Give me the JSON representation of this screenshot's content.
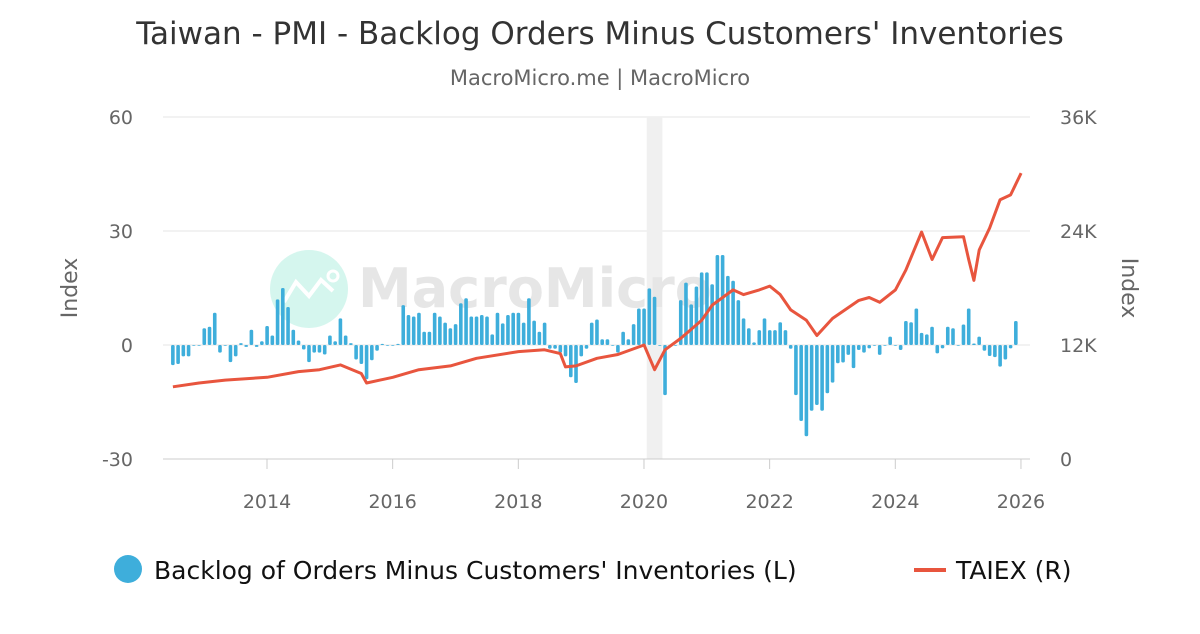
{
  "chart_data": {
    "type": "bar+line",
    "title": "Taiwan - PMI - Backlog Orders Minus Customers' Inventories",
    "subtitle": "MacroMicro.me | MacroMicro",
    "watermark": "MacroMicro",
    "ylabel_left": "Index",
    "ylabel_right": "Index",
    "ylim_left": [
      -30,
      60
    ],
    "ylim_right": [
      0,
      36000
    ],
    "yticks_left": [
      "60",
      "30",
      "0",
      "-30"
    ],
    "yticks_right": [
      "36K",
      "24K",
      "12K",
      "0"
    ],
    "xticks": [
      "2014",
      "2016",
      "2018",
      "2020",
      "2022",
      "2024",
      "2026"
    ],
    "grid": true,
    "legend_position": "bottom",
    "shaded_period": [
      "2020-02",
      "2020-04"
    ],
    "colors": {
      "bar": "#3eaedb",
      "line": "#e8553e",
      "shade": "#f0f0f0"
    },
    "series": [
      {
        "name": "Backlog of Orders Minus Customers' Inventories (L)",
        "type": "bar",
        "axis": "left",
        "points": [
          [
            "2012-07",
            -5.3
          ],
          [
            "2012-08",
            -5
          ],
          [
            "2012-09",
            -3
          ],
          [
            "2012-10",
            -3
          ],
          [
            "2012-11",
            0
          ],
          [
            "2012-12",
            0
          ],
          [
            "2013-01",
            4.4
          ],
          [
            "2013-02",
            4.8
          ],
          [
            "2013-03",
            8.5
          ],
          [
            "2013-04",
            -2
          ],
          [
            "2013-05",
            0
          ],
          [
            "2013-06",
            -4.5
          ],
          [
            "2013-07",
            -3
          ],
          [
            "2013-08",
            0.5
          ],
          [
            "2013-09",
            -0.5
          ],
          [
            "2013-10",
            4
          ],
          [
            "2013-11",
            -0.5
          ],
          [
            "2013-12",
            1
          ],
          [
            "2014-01",
            5
          ],
          [
            "2014-02",
            2.5
          ],
          [
            "2014-03",
            12
          ],
          [
            "2014-04",
            15
          ],
          [
            "2014-05",
            10
          ],
          [
            "2014-06",
            4
          ],
          [
            "2014-07",
            1.2
          ],
          [
            "2014-08",
            -1.2
          ],
          [
            "2014-09",
            -4.5
          ],
          [
            "2014-10",
            -2
          ],
          [
            "2014-11",
            -2
          ],
          [
            "2014-12",
            -2.5
          ],
          [
            "2015-01",
            2.5
          ],
          [
            "2015-02",
            1
          ],
          [
            "2015-03",
            7
          ],
          [
            "2015-04",
            2.5
          ],
          [
            "2015-05",
            0.5
          ],
          [
            "2015-06",
            -3.8
          ],
          [
            "2015-07",
            -5
          ],
          [
            "2015-08",
            -9
          ],
          [
            "2015-09",
            -4
          ],
          [
            "2015-10",
            -1.5
          ],
          [
            "2015-11",
            0.3
          ],
          [
            "2015-12",
            0
          ],
          [
            "2016-01",
            0
          ],
          [
            "2016-02",
            0.3
          ],
          [
            "2016-03",
            10.5
          ],
          [
            "2016-04",
            7.9
          ],
          [
            "2016-05",
            7.5
          ],
          [
            "2016-06",
            8.5
          ],
          [
            "2016-07",
            3.5
          ],
          [
            "2016-08",
            3.5
          ],
          [
            "2016-09",
            8.5
          ],
          [
            "2016-10",
            7.5
          ],
          [
            "2016-11",
            5.9
          ],
          [
            "2016-12",
            4.4
          ],
          [
            "2017-01",
            5.5
          ],
          [
            "2017-02",
            11
          ],
          [
            "2017-03",
            12.3
          ],
          [
            "2017-04",
            7.5
          ],
          [
            "2017-05",
            7.5
          ],
          [
            "2017-06",
            7.9
          ],
          [
            "2017-07",
            7.5
          ],
          [
            "2017-08",
            2.8
          ],
          [
            "2017-09",
            8.5
          ],
          [
            "2017-10",
            5.7
          ],
          [
            "2017-11",
            7.9
          ],
          [
            "2017-12",
            8.5
          ],
          [
            "2018-01",
            8.5
          ],
          [
            "2018-02",
            5.9
          ],
          [
            "2018-03",
            12.3
          ],
          [
            "2018-04",
            6.4
          ],
          [
            "2018-05",
            3.5
          ],
          [
            "2018-06",
            5.9
          ],
          [
            "2018-07",
            -1
          ],
          [
            "2018-08",
            -1
          ],
          [
            "2018-09",
            -2
          ],
          [
            "2018-10",
            -3
          ],
          [
            "2018-11",
            -8.5
          ],
          [
            "2018-12",
            -10
          ],
          [
            "2019-01",
            -3
          ],
          [
            "2019-02",
            -1
          ],
          [
            "2019-03",
            5.9
          ],
          [
            "2019-04",
            6.7
          ],
          [
            "2019-05",
            1.5
          ],
          [
            "2019-06",
            1.5
          ],
          [
            "2019-07",
            0
          ],
          [
            "2019-08",
            -2
          ],
          [
            "2019-09",
            3.5
          ],
          [
            "2019-10",
            1.5
          ],
          [
            "2019-11",
            5.5
          ],
          [
            "2019-12",
            9.6
          ],
          [
            "2020-01",
            9.6
          ],
          [
            "2020-02",
            14.9
          ],
          [
            "2020-03",
            12.7
          ],
          [
            "2020-04",
            0
          ],
          [
            "2020-05",
            -13.2
          ],
          [
            "2020-06",
            0
          ],
          [
            "2020-07",
            0
          ],
          [
            "2020-08",
            11.8
          ],
          [
            "2020-09",
            16.4
          ],
          [
            "2020-10",
            10.7
          ],
          [
            "2020-11",
            15.4
          ],
          [
            "2020-12",
            19.1
          ],
          [
            "2021-01",
            19.1
          ],
          [
            "2021-02",
            16
          ],
          [
            "2021-03",
            23.7
          ],
          [
            "2021-04",
            23.7
          ],
          [
            "2021-05",
            18.2
          ],
          [
            "2021-06",
            16.9
          ],
          [
            "2021-07",
            11.8
          ],
          [
            "2021-08",
            7
          ],
          [
            "2021-09",
            4.4
          ],
          [
            "2021-10",
            0.7
          ],
          [
            "2021-11",
            3.9
          ],
          [
            "2021-12",
            7
          ],
          [
            "2022-01",
            3.9
          ],
          [
            "2022-02",
            3.9
          ],
          [
            "2022-03",
            6
          ],
          [
            "2022-04",
            3.9
          ],
          [
            "2022-05",
            -1
          ],
          [
            "2022-06",
            -13.2
          ],
          [
            "2022-07",
            -20
          ],
          [
            "2022-08",
            -24
          ],
          [
            "2022-09",
            -17.3
          ],
          [
            "2022-10",
            -15.8
          ],
          [
            "2022-11",
            -17.3
          ],
          [
            "2022-12",
            -12.7
          ],
          [
            "2023-01",
            -9.9
          ],
          [
            "2023-02",
            -4.8
          ],
          [
            "2023-03",
            -4.6
          ],
          [
            "2023-04",
            -2.6
          ],
          [
            "2023-05",
            -6.1
          ],
          [
            "2023-06",
            -1.3
          ],
          [
            "2023-07",
            -2
          ],
          [
            "2023-08",
            -0.9
          ],
          [
            "2023-09",
            0
          ],
          [
            "2023-10",
            -2.6
          ],
          [
            "2023-11",
            0
          ],
          [
            "2023-12",
            2.2
          ],
          [
            "2024-01",
            0
          ],
          [
            "2024-02",
            -1.3
          ],
          [
            "2024-03",
            6.3
          ],
          [
            "2024-04",
            6
          ],
          [
            "2024-05",
            9.6
          ],
          [
            "2024-06",
            3.2
          ],
          [
            "2024-07",
            2.8
          ],
          [
            "2024-08",
            4.8
          ],
          [
            "2024-09",
            -2.2
          ],
          [
            "2024-10",
            -0.9
          ],
          [
            "2024-11",
            4.8
          ],
          [
            "2024-12",
            4.4
          ],
          [
            "2025-01",
            0
          ],
          [
            "2025-02",
            5.4
          ],
          [
            "2025-03",
            9.6
          ],
          [
            "2025-04",
            0.4
          ],
          [
            "2025-05",
            2.2
          ],
          [
            "2025-06",
            -1.5
          ],
          [
            "2025-07",
            -2.9
          ],
          [
            "2025-08",
            -3.2
          ],
          [
            "2025-09",
            -5.7
          ],
          [
            "2025-10",
            -3.8
          ],
          [
            "2025-11",
            -0.9
          ],
          [
            "2025-12",
            6.3
          ]
        ]
      },
      {
        "name": "TAIEX (R)",
        "type": "line",
        "axis": "right",
        "points": [
          [
            "2012-07",
            7600
          ],
          [
            "2012-12",
            8000
          ],
          [
            "2013-05",
            8300
          ],
          [
            "2014-01",
            8600
          ],
          [
            "2014-07",
            9200
          ],
          [
            "2014-11",
            9400
          ],
          [
            "2015-03",
            9900
          ],
          [
            "2015-07",
            9000
          ],
          [
            "2015-08",
            8000
          ],
          [
            "2016-01",
            8600
          ],
          [
            "2016-06",
            9400
          ],
          [
            "2016-12",
            9800
          ],
          [
            "2017-05",
            10600
          ],
          [
            "2018-01",
            11300
          ],
          [
            "2018-06",
            11500
          ],
          [
            "2018-09",
            11100
          ],
          [
            "2018-10",
            9700
          ],
          [
            "2018-12",
            9800
          ],
          [
            "2019-04",
            10600
          ],
          [
            "2019-08",
            11000
          ],
          [
            "2020-01",
            12000
          ],
          [
            "2020-03",
            9400
          ],
          [
            "2020-05",
            11500
          ],
          [
            "2020-08",
            12700
          ],
          [
            "2020-12",
            14600
          ],
          [
            "2021-02",
            16200
          ],
          [
            "2021-06",
            17800
          ],
          [
            "2021-08",
            17300
          ],
          [
            "2021-11",
            17800
          ],
          [
            "2022-01",
            18200
          ],
          [
            "2022-03",
            17300
          ],
          [
            "2022-05",
            15700
          ],
          [
            "2022-08",
            14600
          ],
          [
            "2022-10",
            13000
          ],
          [
            "2023-01",
            14800
          ],
          [
            "2023-06",
            16700
          ],
          [
            "2023-08",
            17000
          ],
          [
            "2023-10",
            16500
          ],
          [
            "2024-01",
            17800
          ],
          [
            "2024-03",
            19900
          ],
          [
            "2024-06",
            23900
          ],
          [
            "2024-08",
            21000
          ],
          [
            "2024-10",
            23300
          ],
          [
            "2025-02",
            23400
          ],
          [
            "2025-03",
            21000
          ],
          [
            "2025-04",
            18800
          ],
          [
            "2025-05",
            22000
          ],
          [
            "2025-07",
            24300
          ],
          [
            "2025-09",
            27300
          ],
          [
            "2025-11",
            27800
          ],
          [
            "2026-01",
            30100
          ]
        ]
      }
    ]
  }
}
